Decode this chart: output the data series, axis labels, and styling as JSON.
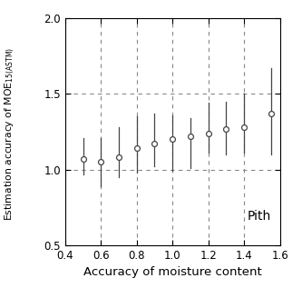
{
  "x": [
    0.5,
    0.6,
    0.7,
    0.8,
    0.9,
    1.0,
    1.1,
    1.2,
    1.3,
    1.4,
    1.55
  ],
  "y": [
    1.07,
    1.05,
    1.08,
    1.14,
    1.17,
    1.2,
    1.22,
    1.24,
    1.27,
    1.28,
    1.37
  ],
  "yerr_lower": [
    0.1,
    0.16,
    0.13,
    0.16,
    0.15,
    0.21,
    0.21,
    0.13,
    0.17,
    0.17,
    0.27
  ],
  "yerr_upper": [
    0.14,
    0.16,
    0.2,
    0.21,
    0.2,
    0.16,
    0.12,
    0.2,
    0.18,
    0.22,
    0.3
  ],
  "xlabel": "Accuracy of moisture content",
  "annotation": "Pith",
  "xlim": [
    0.4,
    1.6
  ],
  "ylim": [
    0.5,
    2.0
  ],
  "xticks": [
    0.4,
    0.6,
    0.8,
    1.0,
    1.2,
    1.4,
    1.6
  ],
  "yticks": [
    0.5,
    1.0,
    1.5,
    2.0
  ],
  "vgrid_lines": [
    0.6,
    0.8,
    1.0,
    1.2,
    1.4
  ],
  "hgrid_lines": [
    1.0,
    1.5
  ],
  "grid_color": "#888888",
  "marker_facecolor": "white",
  "marker_edgecolor": "#444444",
  "error_bar_color": "#444444",
  "ylabel_line1": "Estimation accuracy of MOE",
  "ylabel_subscript": "15(ASTM)"
}
